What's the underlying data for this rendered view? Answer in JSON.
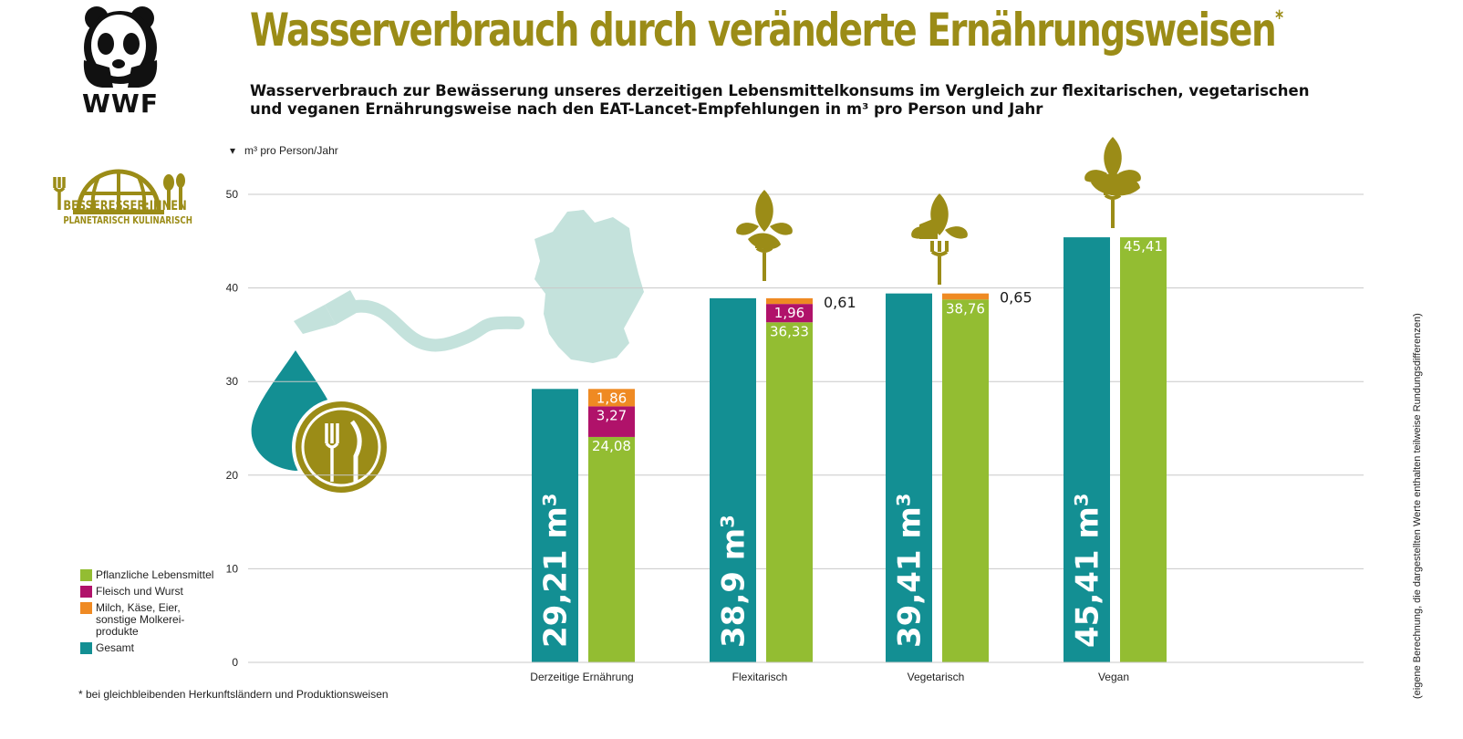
{
  "header": {
    "title": "Wasserverbrauch durch veränderte Ernährungsweisen",
    "title_mark": "*",
    "subtitle": "Wasserverbrauch zur Bewässerung unseres derzeitigen Lebensmittelkonsums im Vergleich zur flexitarischen, vegetarischen und veganen Ernährungsweise nach den EAT-Lancet-Empfehlungen in m³ pro Person und Jahr"
  },
  "logos": {
    "wwf_text": "WWF",
    "wwf_icon": "panda-icon",
    "bess_line1": "BESSERESSER:INNEN",
    "bess_line2": "PLANETARISCH KULINARISCH",
    "bess_icon": "globe-cutlery-icon"
  },
  "unit_label": "m³ pro Person/Jahr",
  "legend": [
    {
      "label": "Pflanzliche Lebensmittel",
      "color": "#93bd32"
    },
    {
      "label": "Fleisch und Wurst",
      "color": "#b0126a"
    },
    {
      "label": "Milch, Käse, Eier, sonstige Molkerei-produkte",
      "color": "#ef8a23"
    },
    {
      "label": "Gesamt",
      "color": "#138f93"
    }
  ],
  "footnote": "* bei gleichbleibenden Herkunftsländern und Produktionsweisen",
  "sidenote": "(eigene Berechnung, die dargestellten Werte enthalten teilweise Rundungsdifferenzen)",
  "chart_data": {
    "type": "bar",
    "ylim": [
      0,
      50
    ],
    "yticks": [
      "0",
      "10",
      "20",
      "30",
      "40",
      "50"
    ],
    "categories": [
      "Derzeitige Ernährung",
      "Flexitarisch",
      "Vegetarisch",
      "Vegan"
    ],
    "totals": [
      29.21,
      38.9,
      39.41,
      45.41
    ],
    "total_labels": [
      "29,21 m³",
      "38,9 m³",
      "39,41 m³",
      "45,41 m³"
    ],
    "series": [
      {
        "name": "Pflanzliche Lebensmittel",
        "color": "#93bd32",
        "values": [
          24.08,
          36.33,
          38.76,
          45.41
        ],
        "labels": [
          "24,08",
          "36,33",
          "38,76",
          "45,41"
        ]
      },
      {
        "name": "Fleisch und Wurst",
        "color": "#b0126a",
        "values": [
          3.27,
          1.96,
          0,
          0
        ],
        "labels": [
          "3,27",
          "1,96",
          "",
          ""
        ]
      },
      {
        "name": "Milch, Käse, Eier, sonstige Molkerei-produkte",
        "color": "#ef8a23",
        "values": [
          1.86,
          0.61,
          0.65,
          0
        ],
        "labels": [
          "1,86",
          "0,61",
          "0,65",
          ""
        ]
      }
    ],
    "total_color": "#138f93",
    "grid": true
  }
}
